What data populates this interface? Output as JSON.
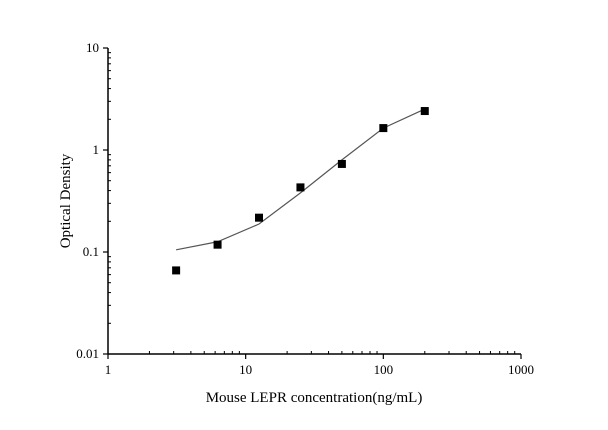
{
  "chart_data": {
    "type": "scatter",
    "title": "",
    "xlabel": "Mouse LEPR concentration(ng/mL)",
    "ylabel": "Optical Density",
    "x_scale": "log",
    "y_scale": "log",
    "xlim": [
      1,
      1000
    ],
    "ylim": [
      0.01,
      10
    ],
    "x_ticks": [
      "1",
      "10",
      "100",
      "1000"
    ],
    "y_ticks": [
      "0.01",
      "0.1",
      "1",
      "10"
    ],
    "grid": false,
    "series": [
      {
        "type": "scatter",
        "marker": "square",
        "color": "#000000",
        "x": [
          3.125,
          6.25,
          12.5,
          25,
          50,
          100,
          200
        ],
        "y": [
          0.066,
          0.118,
          0.217,
          0.43,
          0.73,
          1.64,
          2.41
        ]
      },
      {
        "type": "line",
        "color": "#555555",
        "x": [
          3.125,
          6.25,
          12.5,
          25,
          50,
          100,
          200
        ],
        "y": [
          0.105,
          0.126,
          0.188,
          0.38,
          0.8,
          1.64,
          2.52
        ]
      }
    ]
  }
}
